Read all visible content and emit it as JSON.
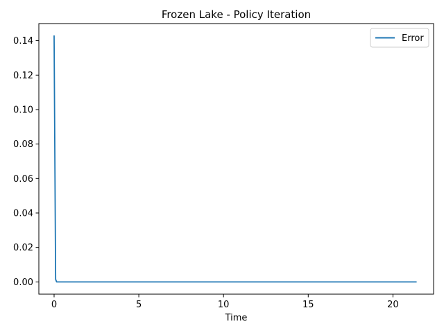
{
  "chart_data": {
    "type": "line",
    "title": "Frozen Lake - Policy Iteration",
    "xlabel": "Time",
    "ylabel": "",
    "xlim": [
      -0.9,
      22.4
    ],
    "ylim": [
      -0.0071,
      0.1499
    ],
    "xticks": [
      0,
      5,
      10,
      15,
      20
    ],
    "xtick_labels": [
      "0",
      "5",
      "10",
      "15",
      "20"
    ],
    "yticks": [
      0.0,
      0.02,
      0.04,
      0.06,
      0.08,
      0.1,
      0.12,
      0.14
    ],
    "ytick_labels": [
      "0.00",
      "0.02",
      "0.04",
      "0.06",
      "0.08",
      "0.10",
      "0.12",
      "0.14"
    ],
    "grid": false,
    "legend_position": "top-right",
    "series": [
      {
        "name": "Error",
        "color": "#1f77b4",
        "x": [
          0.0,
          0.09,
          0.15,
          21.4
        ],
        "y": [
          0.143,
          0.0015,
          0.0,
          0.0
        ]
      }
    ]
  }
}
